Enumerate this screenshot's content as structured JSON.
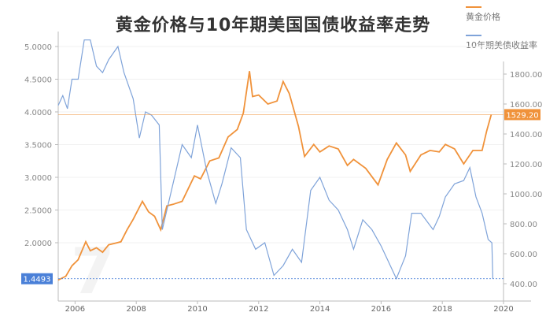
{
  "title": "黄金价格与10年期美国国债收益率走势",
  "colors": {
    "gold": "#f0923a",
    "yield": "#7fa3d9",
    "gold_label_bg": "#f0923a",
    "yield_label_bg": "#4a80d8"
  },
  "chart_data": {
    "type": "line",
    "title": "黄金价格与10年期美国国债收益率走势",
    "legend_position": "top-right",
    "grid": true,
    "x_ticks": [
      "2006",
      "2008",
      "2010",
      "2012",
      "2014",
      "2016",
      "2018",
      "2020"
    ],
    "xlim": [
      2005.45,
      2020.0
    ],
    "left_axis": {
      "ylim": [
        0.6,
        5.35
      ],
      "ticks": [
        "5.0000",
        "4.5000",
        "4.0000",
        "3.5000",
        "3.0000",
        "2.5000",
        "2.0000"
      ],
      "tick_values": [
        5,
        4.5,
        4,
        3.5,
        3,
        2.5,
        2
      ]
    },
    "right_axis": {
      "ylim": [
        300,
        1950
      ],
      "ticks": [
        "1800.00",
        "1600.00",
        "1400.00",
        "1200.00",
        "1000.00",
        "800.00",
        "600.00",
        "400.00"
      ],
      "tick_values": [
        1800,
        1600,
        1400,
        1200,
        1000,
        800,
        600,
        400
      ]
    },
    "series": [
      {
        "name": "黄金价格",
        "axis": "right",
        "color": "#f0923a",
        "x": [
          2005.45,
          2005.7,
          2005.9,
          2006.1,
          2006.35,
          2006.5,
          2006.7,
          2006.9,
          2007.1,
          2007.3,
          2007.5,
          2007.7,
          2007.9,
          2008.2,
          2008.4,
          2008.6,
          2008.8,
          2009.0,
          2009.2,
          2009.5,
          2009.9,
          2010.1,
          2010.4,
          2010.7,
          2011.0,
          2011.3,
          2011.5,
          2011.7,
          2011.8,
          2012.0,
          2012.3,
          2012.6,
          2012.8,
          2013.0,
          2013.3,
          2013.5,
          2013.8,
          2014.0,
          2014.3,
          2014.6,
          2014.9,
          2015.1,
          2015.5,
          2015.9,
          2016.2,
          2016.5,
          2016.8,
          2016.95,
          2017.3,
          2017.6,
          2017.9,
          2018.1,
          2018.4,
          2018.7,
          2019.0,
          2019.3,
          2019.45,
          2019.6
        ],
        "values": [
          425,
          450,
          520,
          560,
          680,
          620,
          640,
          610,
          660,
          670,
          680,
          760,
          830,
          950,
          880,
          850,
          760,
          920,
          930,
          950,
          1120,
          1100,
          1220,
          1240,
          1380,
          1430,
          1540,
          1820,
          1650,
          1660,
          1600,
          1620,
          1750,
          1670,
          1450,
          1250,
          1330,
          1280,
          1320,
          1300,
          1190,
          1230,
          1170,
          1060,
          1230,
          1340,
          1260,
          1150,
          1260,
          1290,
          1280,
          1330,
          1300,
          1200,
          1290,
          1290,
          1420,
          1529
        ]
      },
      {
        "name": "10年期美债收益率",
        "axis": "left",
        "color": "#7fa3d9",
        "x": [
          2005.45,
          2005.6,
          2005.75,
          2005.9,
          2006.1,
          2006.3,
          2006.5,
          2006.7,
          2006.9,
          2007.1,
          2007.4,
          2007.6,
          2007.9,
          2008.1,
          2008.3,
          2008.5,
          2008.75,
          2008.85,
          2009.0,
          2009.2,
          2009.5,
          2009.8,
          2010.0,
          2010.3,
          2010.6,
          2010.8,
          2011.1,
          2011.4,
          2011.6,
          2011.9,
          2012.2,
          2012.5,
          2012.8,
          2013.1,
          2013.4,
          2013.7,
          2014.0,
          2014.3,
          2014.6,
          2014.9,
          2015.1,
          2015.4,
          2015.7,
          2016.0,
          2016.2,
          2016.5,
          2016.8,
          2017.0,
          2017.3,
          2017.7,
          2017.9,
          2018.1,
          2018.4,
          2018.7,
          2018.9,
          2019.1,
          2019.3,
          2019.5,
          2019.62,
          2019.65
        ],
        "values": [
          4.1,
          4.25,
          4.05,
          4.5,
          4.5,
          5.1,
          5.1,
          4.7,
          4.6,
          4.8,
          5.0,
          4.6,
          4.2,
          3.6,
          4.0,
          3.95,
          3.8,
          2.2,
          2.5,
          2.9,
          3.5,
          3.3,
          3.8,
          3.1,
          2.6,
          2.9,
          3.45,
          3.3,
          2.2,
          1.9,
          2.0,
          1.5,
          1.65,
          1.9,
          1.7,
          2.8,
          3.0,
          2.65,
          2.5,
          2.2,
          1.9,
          2.35,
          2.2,
          1.95,
          1.75,
          1.45,
          1.8,
          2.45,
          2.45,
          2.2,
          2.4,
          2.7,
          2.9,
          2.95,
          3.15,
          2.7,
          2.45,
          2.05,
          2.0,
          1.4493
        ]
      }
    ],
    "reference_lines": [
      {
        "axis": "right",
        "value": 1529.2,
        "label": "1529.20",
        "color": "#f0923a"
      },
      {
        "axis": "left",
        "value": 1.4493,
        "label": "1.4493",
        "color": "#4a80d8"
      }
    ]
  }
}
